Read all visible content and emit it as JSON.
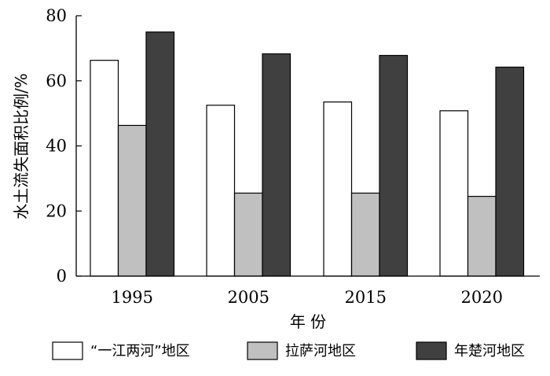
{
  "chart_data": {
    "type": "bar",
    "categories": [
      "1995",
      "2005",
      "2015",
      "2020"
    ],
    "series": [
      {
        "name": "“一江两河”地区",
        "values": [
          66.3,
          52.5,
          53.5,
          50.8
        ],
        "color": "#ffffff"
      },
      {
        "name": "拉萨河地区",
        "values": [
          46.3,
          25.5,
          25.5,
          24.5
        ],
        "color": "#c0c0c0"
      },
      {
        "name": "年楚河地区",
        "values": [
          75.0,
          68.3,
          67.8,
          64.2
        ],
        "color": "#404040"
      }
    ],
    "xlabel": "年 份",
    "ylabel": "水土流失面积比例/%",
    "ylim": [
      0,
      80
    ],
    "yticks": [
      "0",
      "20",
      "40",
      "60",
      "80"
    ],
    "grid": false,
    "legend_position": "bottom"
  }
}
